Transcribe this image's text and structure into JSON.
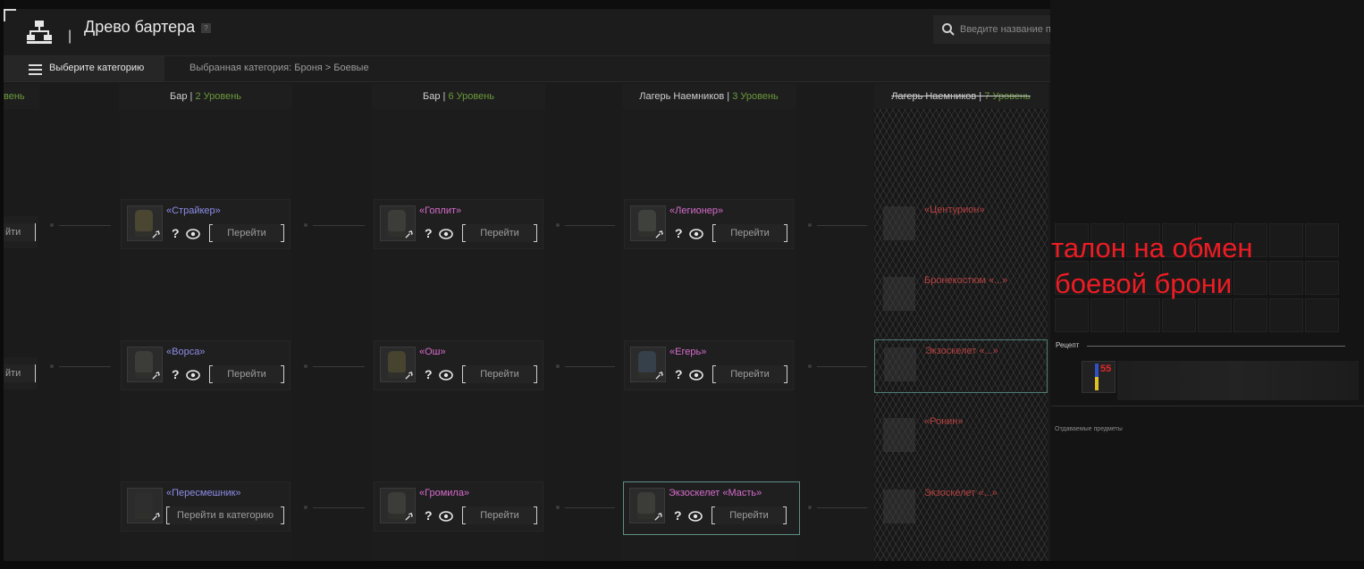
{
  "header": {
    "title": "Древо бартера",
    "help": "?",
    "separator": "|",
    "search_placeholder": "Введите название предмета"
  },
  "category_bar": {
    "button_label": "Выберите категорию",
    "selected_text": "Выбранная категория: Броня > Боевые"
  },
  "columns": [
    {
      "name": "Бар",
      "sep": " | ",
      "level": "2 Уровень"
    },
    {
      "name": "Бар",
      "sep": " | ",
      "level": "6 Уровень"
    },
    {
      "name": "Лагерь Наемников",
      "sep": " | ",
      "level": "3 Уровень"
    },
    {
      "name": "Лагерь Наемников",
      "sep": " | ",
      "level": "7 Уровень"
    }
  ],
  "left_stub": {
    "header": "вень",
    "button": "йти"
  },
  "cards": {
    "c1r1": {
      "name": "«Страйкер»",
      "q": "?",
      "go": "Перейти"
    },
    "c1r2": {
      "name": "«Ворса»",
      "q": "?",
      "go": "Перейти"
    },
    "c1r3": {
      "name": "«Пересмешник»",
      "go": "Перейти в категорию"
    },
    "c2r1": {
      "name": "«Гоплит»",
      "q": "?",
      "go": "Перейти"
    },
    "c2r2": {
      "name": "«Ош»",
      "q": "?",
      "go": "Перейти"
    },
    "c2r3": {
      "name": "«Громила»",
      "q": "?",
      "go": "Перейти"
    },
    "c3r1": {
      "name": "«Легионер»",
      "q": "?",
      "go": "Перейти"
    },
    "c3r2": {
      "name": "«Егерь»",
      "q": "?",
      "go": "Перейти"
    },
    "c3r3": {
      "name": "Экзоскелет «Масть»",
      "q": "?",
      "go": "Перейти"
    }
  },
  "noise_cards": [
    "«Центурион»",
    "Бронекостюм «...»",
    "Экзоскелет «...»",
    "«Ронин»",
    "Экзоскелет «...»"
  ],
  "overlay_text": [
    "талон на обмен",
    "боевой брони"
  ],
  "recipe": {
    "label": "Рецепт",
    "item_count": "55"
  },
  "given_label": "Отдаваемые предметы",
  "colors": {
    "level": "#6a9a3a",
    "name_blue": "#8d8de8",
    "name_pink": "#d76ccc",
    "overlay_red": "#ee1c24",
    "highlight_border": "#5d8f84"
  }
}
